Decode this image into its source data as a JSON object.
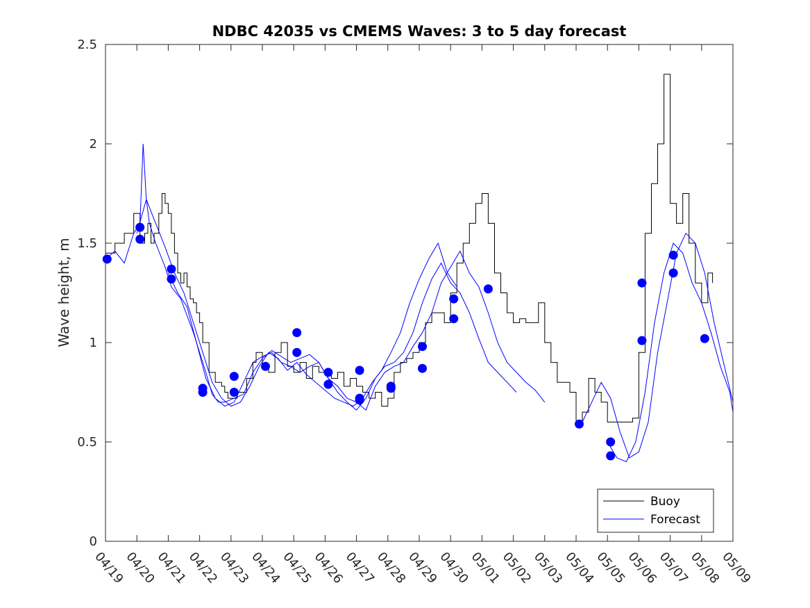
{
  "chart_data": {
    "type": "line",
    "title": "NDBC 42035 vs CMEMS Waves: 3 to 5 day forecast",
    "xlabel": "",
    "ylabel": "Wave height, m",
    "ylim": [
      0,
      2.5
    ],
    "yticks": [
      "0",
      "0.5",
      "1",
      "1.5",
      "2",
      "2.5"
    ],
    "xlim": [
      0,
      20
    ],
    "x_unit": "days from 04/19",
    "xticks": [
      "04/19",
      "04/20",
      "04/21",
      "04/22",
      "04/23",
      "04/24",
      "04/25",
      "04/26",
      "04/27",
      "04/28",
      "04/29",
      "04/30",
      "05/01",
      "05/02",
      "05/03",
      "05/04",
      "05/05",
      "05/06",
      "05/07",
      "05/08",
      "05/09"
    ],
    "grid": false,
    "legend": {
      "position": "bottom-right",
      "entries": [
        "Buoy",
        "Forecast"
      ]
    },
    "colors": {
      "buoy": "#000000",
      "forecast": "#0000ff"
    },
    "series": [
      {
        "name": "Buoy",
        "color": "#000000",
        "x": [
          0,
          0.3,
          0.6,
          0.9,
          1.1,
          1.25,
          1.35,
          1.45,
          1.55,
          1.7,
          1.8,
          1.9,
          2.0,
          2.1,
          2.2,
          2.3,
          2.4,
          2.5,
          2.6,
          2.7,
          2.8,
          2.9,
          3.0,
          3.1,
          3.3,
          3.5,
          3.7,
          3.8,
          3.9,
          4.0,
          4.2,
          4.5,
          4.7,
          4.8,
          5.0,
          5.2,
          5.4,
          5.6,
          5.8,
          6.0,
          6.2,
          6.4,
          6.6,
          6.8,
          7.0,
          7.2,
          7.4,
          7.6,
          7.8,
          8.0,
          8.2,
          8.4,
          8.6,
          8.8,
          9.0,
          9.2,
          9.4,
          9.6,
          9.8,
          10.0,
          10.2,
          10.4,
          10.6,
          10.8,
          11.0,
          11.2,
          11.4,
          11.6,
          11.8,
          12.0,
          12.2,
          12.4,
          12.6,
          12.8,
          13.0,
          13.2,
          13.4,
          13.6,
          13.8,
          14.0,
          14.2,
          14.4,
          14.6,
          14.8,
          15.0,
          15.2,
          15.4,
          15.6,
          15.8,
          16.0,
          16.2,
          16.4,
          16.6,
          16.8,
          17.0,
          17.2,
          17.4,
          17.6,
          17.8,
          18.0,
          18.2,
          18.4,
          18.6,
          18.8,
          19.0,
          19.2,
          19.35
        ],
        "values": [
          1.45,
          1.5,
          1.55,
          1.65,
          1.5,
          1.55,
          1.6,
          1.5,
          1.55,
          1.65,
          1.75,
          1.7,
          1.65,
          1.55,
          1.45,
          1.35,
          1.3,
          1.35,
          1.28,
          1.22,
          1.2,
          1.15,
          1.1,
          1.0,
          0.85,
          0.8,
          0.78,
          0.75,
          0.72,
          0.72,
          0.75,
          0.82,
          0.9,
          0.95,
          0.88,
          0.85,
          0.95,
          1.0,
          0.88,
          0.85,
          0.9,
          0.82,
          0.88,
          0.85,
          0.85,
          0.82,
          0.85,
          0.78,
          0.82,
          0.78,
          0.75,
          0.72,
          0.75,
          0.68,
          0.72,
          0.85,
          0.9,
          0.92,
          0.95,
          1.0,
          1.1,
          1.15,
          1.15,
          1.1,
          1.25,
          1.4,
          1.5,
          1.6,
          1.7,
          1.75,
          1.6,
          1.35,
          1.25,
          1.15,
          1.1,
          1.12,
          1.1,
          1.1,
          1.2,
          1.0,
          0.9,
          0.8,
          0.8,
          0.75,
          0.6,
          0.65,
          0.82,
          0.75,
          0.7,
          0.6,
          0.6,
          0.6,
          0.6,
          0.62,
          0.95,
          1.55,
          1.8,
          2.0,
          2.35,
          1.7,
          1.6,
          1.75,
          1.5,
          1.3,
          1.2,
          1.35,
          1.3
        ]
      },
      {
        "name": "Forecast",
        "color": "#0000ff",
        "x": [
          0,
          0.3,
          0.6,
          0.9,
          1.1,
          1.2,
          1.3,
          1.4,
          1.6,
          1.9,
          2.1,
          2.4,
          2.8,
          3.2,
          3.4,
          3.6,
          3.8,
          4.1,
          4.4,
          4.7,
          5.0,
          5.3,
          5.6,
          5.9,
          6.2,
          6.5,
          6.8,
          7.1,
          7.4,
          7.7,
          8.0,
          8.3,
          8.6,
          8.9,
          9.2,
          9.5,
          9.8,
          10.1,
          10.4,
          10.7,
          11.0,
          11.3,
          11.6,
          11.9,
          12.2,
          12.5,
          12.8,
          13.1,
          13.4,
          13.7,
          14.0
        ],
        "values": [
          1.42,
          1.46,
          1.4,
          1.55,
          1.6,
          2.0,
          1.72,
          1.6,
          1.5,
          1.38,
          1.28,
          1.22,
          1.05,
          0.85,
          0.74,
          0.7,
          0.7,
          0.72,
          0.74,
          0.85,
          0.92,
          0.96,
          0.93,
          0.9,
          0.92,
          0.94,
          0.9,
          0.82,
          0.78,
          0.72,
          0.7,
          0.66,
          0.78,
          0.85,
          0.88,
          0.9,
          0.98,
          1.05,
          1.15,
          1.3,
          1.38,
          1.46,
          1.35,
          1.28,
          1.15,
          1.0,
          0.9,
          0.85,
          0.8,
          0.76,
          0.7
        ]
      },
      {
        "name": "",
        "color": "#0000ff",
        "x": [
          1.0,
          1.3,
          1.6,
          1.9,
          2.2,
          2.5,
          2.8,
          3.1,
          3.4,
          3.7,
          4.0,
          4.3,
          4.6,
          4.9,
          5.2,
          5.5,
          5.8,
          6.1,
          6.4,
          6.7,
          7.0,
          7.3,
          7.6,
          7.9,
          8.2,
          8.5,
          8.8,
          9.1,
          9.4,
          9.7,
          10.0,
          10.3,
          10.6,
          10.9,
          11.2
        ],
        "values": [
          1.55,
          1.72,
          1.6,
          1.48,
          1.35,
          1.25,
          1.1,
          0.95,
          0.8,
          0.72,
          0.68,
          0.7,
          0.78,
          0.88,
          0.95,
          0.92,
          0.86,
          0.9,
          0.84,
          0.8,
          0.76,
          0.72,
          0.7,
          0.68,
          0.72,
          0.8,
          0.86,
          0.95,
          1.05,
          1.2,
          1.32,
          1.42,
          1.5,
          1.35,
          1.28
        ]
      },
      {
        "name": "",
        "color": "#0000ff",
        "x": [
          2.0,
          2.3,
          2.6,
          2.9,
          3.2,
          3.5,
          3.8,
          4.1,
          4.4,
          4.7,
          5.0,
          5.3,
          5.6,
          5.9,
          6.2,
          6.5,
          6.8,
          7.1,
          7.4,
          7.7,
          8.0,
          8.3,
          8.6,
          8.9,
          9.2,
          9.5,
          9.8,
          10.1,
          10.4,
          10.7,
          11.0,
          11.3,
          11.6,
          11.9,
          12.2,
          12.5,
          12.8,
          13.1
        ],
        "values": [
          1.35,
          1.25,
          1.18,
          1.0,
          0.82,
          0.72,
          0.68,
          0.7,
          0.8,
          0.9,
          0.93,
          0.95,
          0.9,
          0.88,
          0.85,
          0.88,
          0.9,
          0.82,
          0.75,
          0.7,
          0.66,
          0.72,
          0.82,
          0.88,
          0.9,
          0.95,
          1.05,
          1.2,
          1.32,
          1.4,
          1.3,
          1.25,
          1.15,
          1.02,
          0.9,
          0.85,
          0.8,
          0.75
        ]
      },
      {
        "name": "",
        "color": "#0000ff",
        "x": [
          15.2,
          15.5,
          15.8,
          16.1,
          16.4,
          16.7,
          17.0,
          17.3,
          17.6,
          17.9,
          18.2,
          18.5,
          18.8,
          19.1,
          19.4,
          19.7,
          20.0
        ],
        "values": [
          0.6,
          0.7,
          0.8,
          0.72,
          0.55,
          0.42,
          0.45,
          0.6,
          0.95,
          1.2,
          1.45,
          1.55,
          1.5,
          1.35,
          1.1,
          0.9,
          0.7
        ]
      },
      {
        "name": "",
        "color": "#0000ff",
        "x": [
          16.0,
          16.3,
          16.6,
          16.9,
          17.2,
          17.5,
          17.8,
          18.1,
          18.4,
          18.7,
          19.0,
          19.3,
          19.6,
          19.9,
          20.0
        ],
        "values": [
          0.5,
          0.42,
          0.4,
          0.5,
          0.75,
          1.1,
          1.35,
          1.5,
          1.45,
          1.3,
          1.2,
          1.05,
          0.88,
          0.75,
          0.65
        ]
      }
    ],
    "markers": {
      "name": "",
      "color": "#0000ff",
      "x": [
        0.05,
        1.1,
        1.1,
        2.1,
        2.1,
        3.1,
        3.1,
        4.1,
        4.1,
        5.1,
        6.1,
        6.1,
        7.1,
        7.1,
        8.1,
        8.1,
        8.1,
        9.1,
        9.1,
        10.1,
        10.1,
        11.1,
        11.1,
        12.2,
        15.1,
        16.1,
        16.1,
        17.1,
        17.1,
        18.1,
        18.1,
        19.1
      ],
      "values": [
        1.42,
        1.58,
        1.52,
        1.37,
        1.32,
        0.77,
        0.75,
        0.83,
        0.75,
        0.88,
        1.05,
        0.95,
        0.85,
        0.79,
        0.86,
        0.72,
        0.71,
        0.78,
        0.77,
        0.98,
        0.87,
        1.22,
        1.12,
        1.27,
        0.59,
        0.5,
        0.43,
        1.3,
        1.01,
        1.44,
        1.35,
        1.02
      ]
    }
  }
}
